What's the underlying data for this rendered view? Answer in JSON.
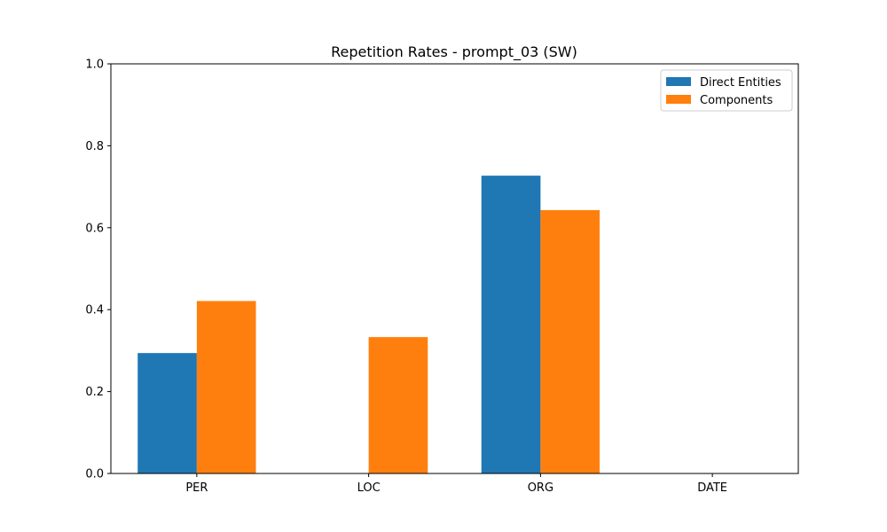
{
  "chart_data": {
    "type": "bar",
    "title": "Repetition Rates - prompt_03 (SW)",
    "xlabel": "",
    "ylabel": "",
    "categories": [
      "PER",
      "LOC",
      "ORG",
      "DATE"
    ],
    "series": [
      {
        "name": "Direct Entities",
        "color": "#1f77b4",
        "values": [
          0.294,
          0.0,
          0.727,
          0.0
        ]
      },
      {
        "name": "Components",
        "color": "#ff7f0e",
        "values": [
          0.421,
          0.333,
          0.643,
          0.0
        ]
      }
    ],
    "ylim": [
      0,
      1.0
    ],
    "yticks": [
      "0.0",
      "0.2",
      "0.4",
      "0.6",
      "0.8",
      "1.0"
    ],
    "grid": false,
    "legend_position": "top-right"
  }
}
